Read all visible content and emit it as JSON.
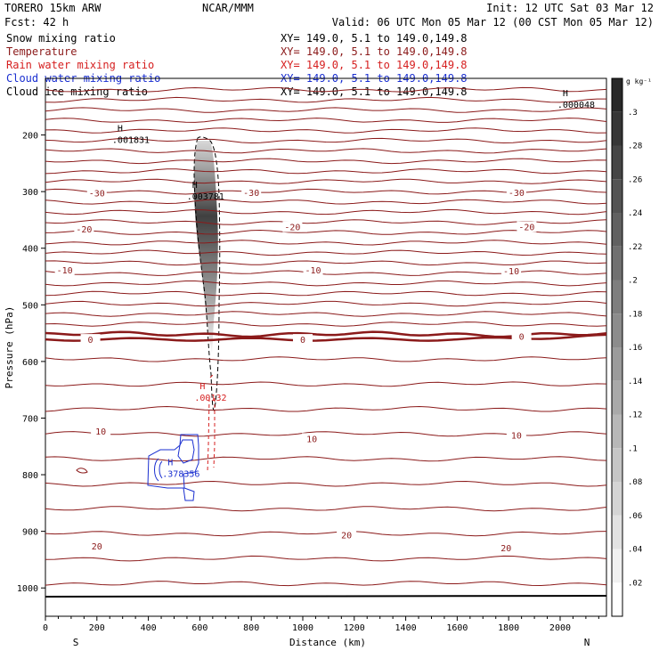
{
  "header": {
    "model": "TORERO  15km ARW",
    "center": "NCAR/MMM",
    "init": "Init: 12 UTC Sat 03 Mar 12",
    "fcst": "Fcst:   42 h",
    "valid": "Valid: 06 UTC Mon 05 Mar 12 (00 CST Mon 05 Mar 12)"
  },
  "fields": [
    {
      "name": "Snow mixing ratio",
      "xy": "XY= 149.0,  5.1 to 149.0,149.8",
      "color": "#000000"
    },
    {
      "name": "Temperature",
      "xy": "XY= 149.0,  5.1 to 149.0,149.8",
      "color": "#8b1a1a"
    },
    {
      "name": "Rain water mixing ratio",
      "xy": "XY= 149.0,  5.1 to 149.0,149.8",
      "color": "#d62020"
    },
    {
      "name": "Cloud water mixing ratio",
      "xy": "XY= 149.0,  5.1 to 149.0,149.8",
      "color": "#1a2fd0"
    },
    {
      "name": "Cloud ice mixing ratio",
      "xy": "XY= 149.0,  5.1 to 149.0,149.8",
      "color": "#000000"
    }
  ],
  "chart_data": {
    "type": "contour cross-section",
    "xlabel": "Distance (km)",
    "ylabel": "Pressure (hPa)",
    "xlim": [
      0,
      2180
    ],
    "ylim": [
      1050,
      100
    ],
    "x_ticks": [
      0,
      200,
      400,
      600,
      800,
      1000,
      1200,
      1400,
      1600,
      1800,
      2000
    ],
    "y_ticks": [
      200,
      300,
      400,
      500,
      600,
      700,
      800,
      900,
      1000
    ],
    "x_end_labels": {
      "left": "S",
      "right": "N"
    },
    "temperature_contour_labels": [
      {
        "label": "-30",
        "x": 200,
        "p": 302
      },
      {
        "label": "-30",
        "x": 800,
        "p": 301
      },
      {
        "label": "-30",
        "x": 1830,
        "p": 301
      },
      {
        "label": "-20",
        "x": 150,
        "p": 366
      },
      {
        "label": "-20",
        "x": 960,
        "p": 362
      },
      {
        "label": "-20",
        "x": 1870,
        "p": 362
      },
      {
        "label": "-10",
        "x": 75,
        "p": 438
      },
      {
        "label": "-10",
        "x": 1040,
        "p": 438
      },
      {
        "label": "-10",
        "x": 1810,
        "p": 440
      },
      {
        "label": "0",
        "x": 175,
        "p": 561
      },
      {
        "label": "0",
        "x": 1000,
        "p": 561
      },
      {
        "label": "0",
        "x": 1850,
        "p": 555
      },
      {
        "label": "10",
        "x": 215,
        "p": 723
      },
      {
        "label": "10",
        "x": 1035,
        "p": 736
      },
      {
        "label": "10",
        "x": 1830,
        "p": 730
      },
      {
        "label": "20",
        "x": 200,
        "p": 926
      },
      {
        "label": "20",
        "x": 1170,
        "p": 906
      },
      {
        "label": "20",
        "x": 1790,
        "p": 929
      }
    ],
    "maxima": [
      {
        "field": "snow",
        "label": "H",
        "value": ".001831",
        "x": 280,
        "p": 200
      },
      {
        "field": "snow",
        "label": "H",
        "value": ".003781",
        "x": 570,
        "p": 300
      },
      {
        "field": "snow",
        "label": "H",
        "value": ".000048",
        "x": 2010,
        "p": 138
      },
      {
        "field": "rain",
        "label": "H",
        "value": ".00132",
        "x": 600,
        "p": 655
      },
      {
        "field": "cloud water",
        "label": "H",
        "value": ".378356",
        "x": 475,
        "p": 790
      }
    ],
    "colorbar": {
      "unit": "g kg⁻¹",
      "ticks": [
        ".02",
        ".04",
        ".06",
        ".08",
        ".1",
        ".12",
        ".14",
        ".16",
        ".18",
        ".2",
        ".22",
        ".24",
        ".26",
        ".28",
        ".3"
      ],
      "values": [
        0.02,
        0.04,
        0.06,
        0.08,
        0.1,
        0.12,
        0.14,
        0.16,
        0.18,
        0.2,
        0.22,
        0.24,
        0.26,
        0.28,
        0.3
      ]
    },
    "colors": {
      "temperature": "#8b1a1a",
      "rain": "#d62020",
      "cloud_water": "#1a2fd0",
      "snow": "#000000"
    }
  }
}
